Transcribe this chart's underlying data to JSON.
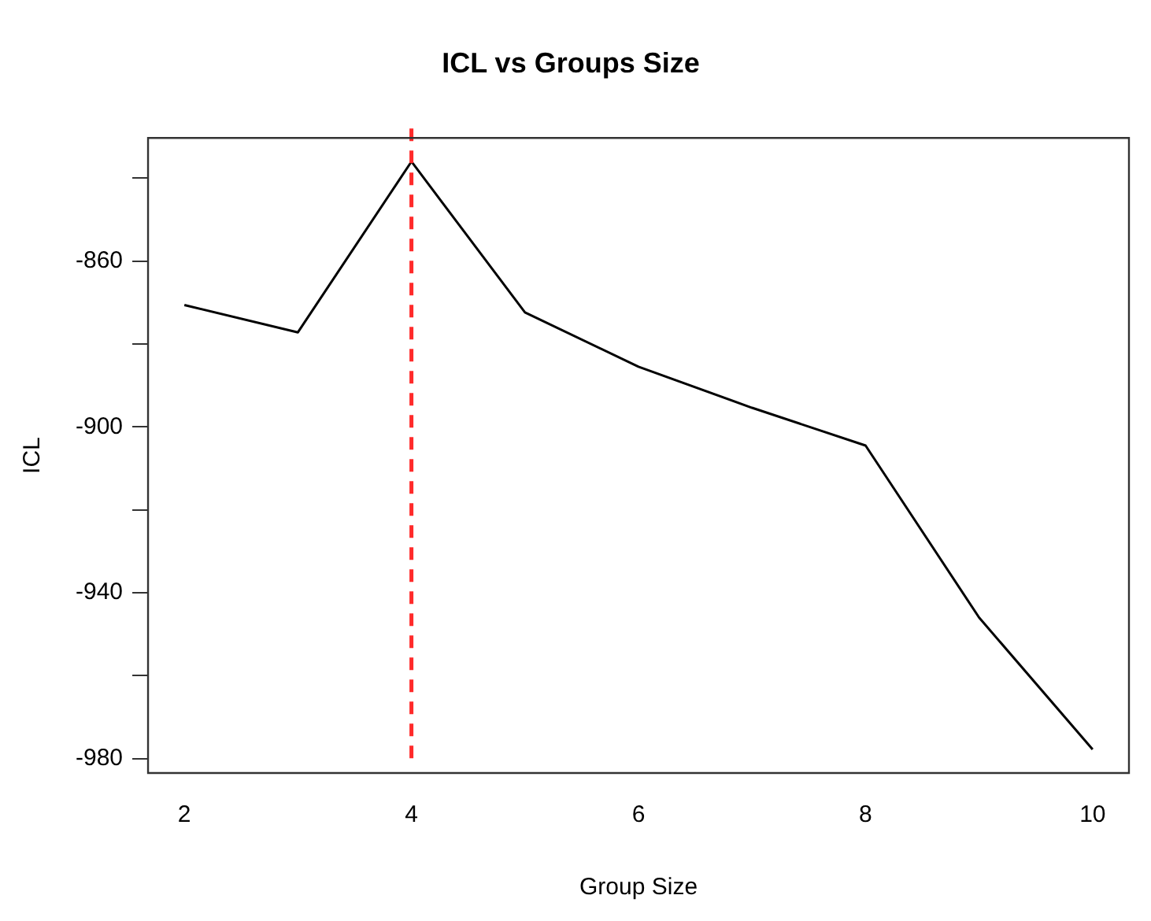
{
  "chart_data": {
    "type": "line",
    "title": "ICL vs Groups Size",
    "xlabel": "Group Size",
    "ylabel": "ICL",
    "x": [
      2,
      3,
      4,
      5,
      6,
      7,
      8,
      9,
      10
    ],
    "series": [
      {
        "color": "#000000",
        "values": [
          -870.6,
          -877.2,
          -836,
          -872.4,
          -885.5,
          -895.4,
          -904.5,
          -946,
          -977.8
        ]
      }
    ],
    "xlim": [
      1.68,
      10.32
    ],
    "ylim": [
      -983.5,
      -830.3
    ],
    "xticks": [
      2,
      4,
      6,
      8,
      10
    ],
    "yticks": [
      {
        "value": -980,
        "label": "-980"
      },
      {
        "value": -960,
        "label": null
      },
      {
        "value": -940,
        "label": "-940"
      },
      {
        "value": -920,
        "label": null
      },
      {
        "value": -900,
        "label": "-900"
      },
      {
        "value": -880,
        "label": null
      },
      {
        "value": -860,
        "label": "-860"
      },
      {
        "value": -840,
        "label": null
      }
    ],
    "ref_lines": [
      {
        "axis": "x",
        "value": 4,
        "color": "#ff2a2a",
        "line_style": "dashed"
      }
    ],
    "grid": false,
    "legend": false,
    "marker": "none"
  }
}
